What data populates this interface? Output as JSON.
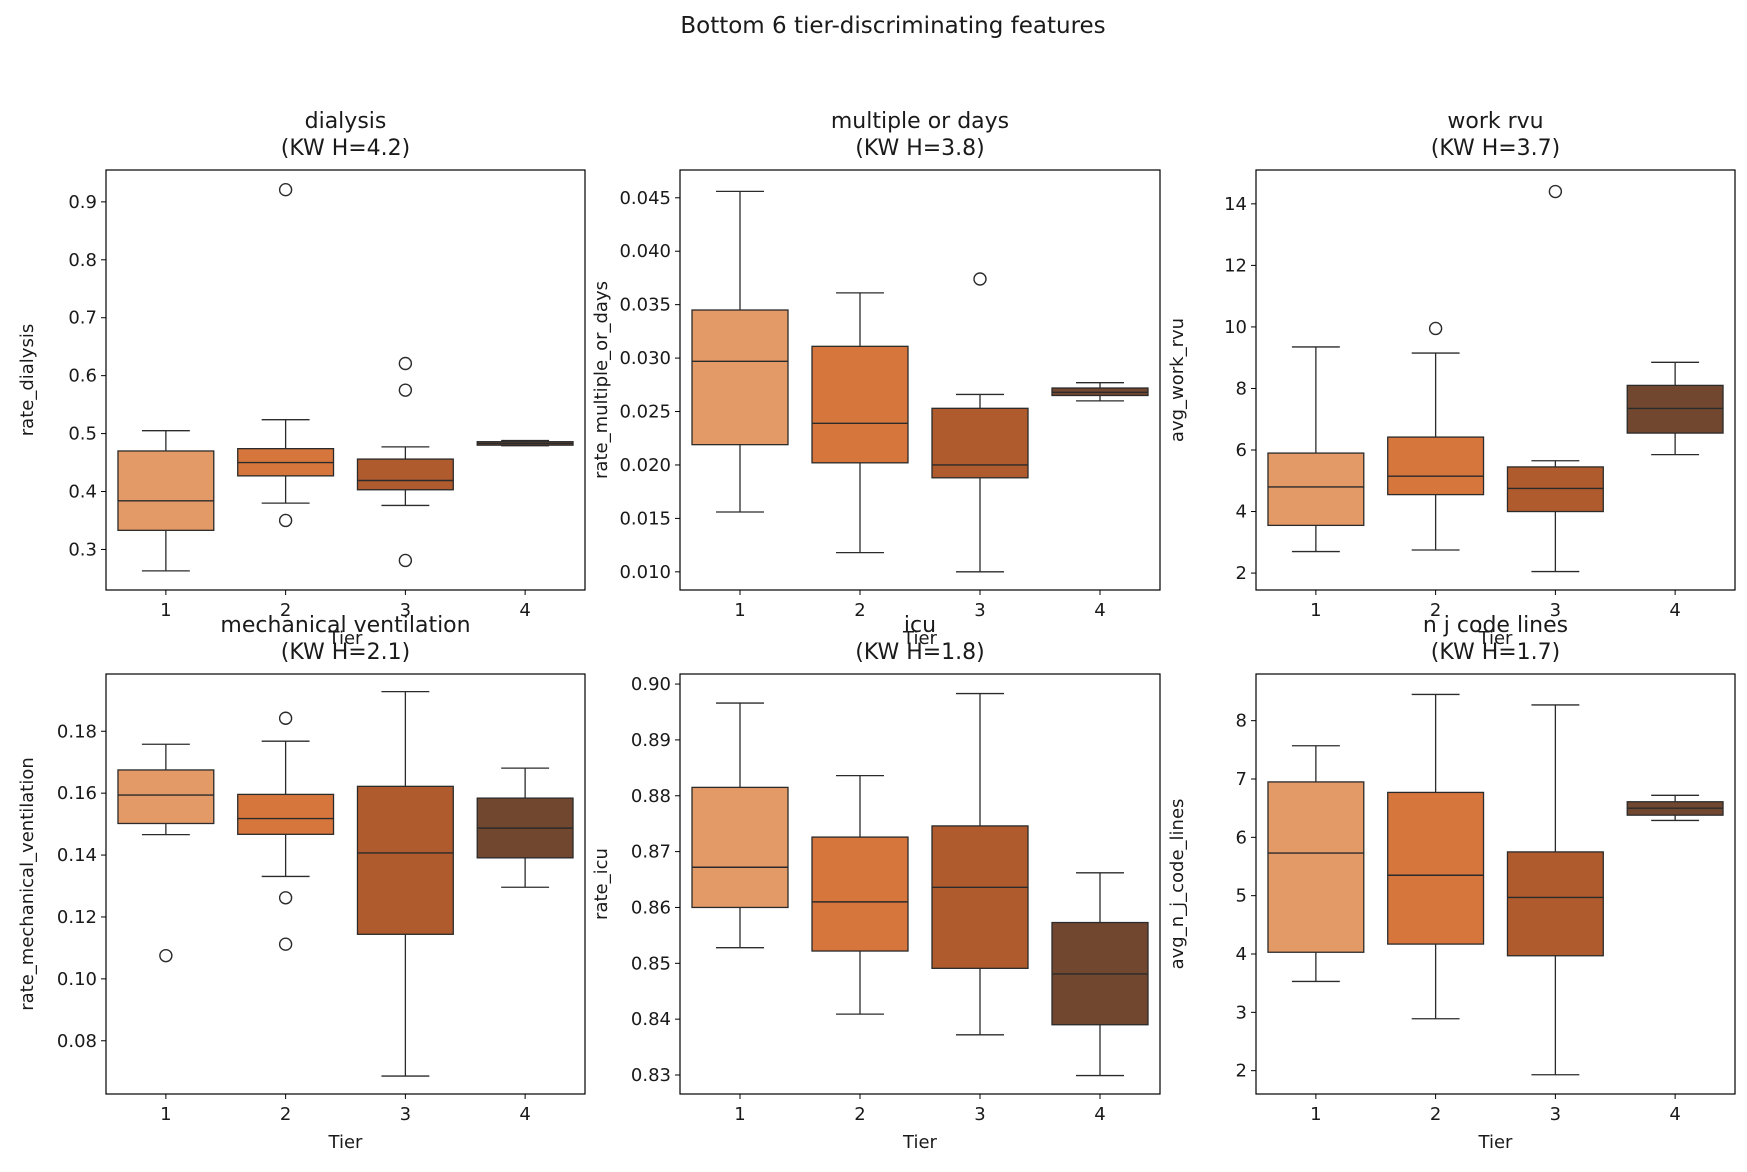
{
  "suptitle": "Bottom 6 tier-discriminating features",
  "colors": {
    "tiers": [
      "#e39a66",
      "#d7763c",
      "#af5b2d",
      "#724730"
    ],
    "line": "#2b2b2b"
  },
  "chart_data": [
    {
      "type": "box",
      "title_line1": "dialysis",
      "title_line2": "(KW H=4.2)",
      "xlabel": "Tier",
      "ylabel": "rate_dialysis",
      "categories": [
        "1",
        "2",
        "3",
        "4"
      ],
      "ylim": [
        0.23,
        0.955
      ],
      "yticks": [
        0.3,
        0.4,
        0.5,
        0.6,
        0.7,
        0.8,
        0.9
      ],
      "ytick_labels": [
        "0.3",
        "0.4",
        "0.5",
        "0.6",
        "0.7",
        "0.8",
        "0.9"
      ],
      "boxes": [
        {
          "tier": "1",
          "whislo": 0.263,
          "q1": 0.333,
          "med": 0.384,
          "q3": 0.47,
          "whishi": 0.505,
          "fliers": []
        },
        {
          "tier": "2",
          "whislo": 0.38,
          "q1": 0.427,
          "med": 0.45,
          "q3": 0.474,
          "whishi": 0.524,
          "fliers": [
            0.921,
            0.35
          ]
        },
        {
          "tier": "3",
          "whislo": 0.376,
          "q1": 0.403,
          "med": 0.419,
          "q3": 0.456,
          "whishi": 0.477,
          "fliers": [
            0.621,
            0.575,
            0.281
          ]
        },
        {
          "tier": "4",
          "whislo": 0.479,
          "q1": 0.48,
          "med": 0.483,
          "q3": 0.486,
          "whishi": 0.488,
          "fliers": []
        }
      ]
    },
    {
      "type": "box",
      "title_line1": "multiple or days",
      "title_line2": "(KW H=3.8)",
      "xlabel": "Tier",
      "ylabel": "rate_multiple_or_days",
      "categories": [
        "1",
        "2",
        "3",
        "4"
      ],
      "ylim": [
        0.0083,
        0.0476
      ],
      "yticks": [
        0.01,
        0.015,
        0.02,
        0.025,
        0.03,
        0.035,
        0.04,
        0.045
      ],
      "ytick_labels": [
        "0.010",
        "0.015",
        "0.020",
        "0.025",
        "0.030",
        "0.035",
        "0.040",
        "0.045"
      ],
      "boxes": [
        {
          "tier": "1",
          "whislo": 0.0156,
          "q1": 0.0219,
          "med": 0.0297,
          "q3": 0.0345,
          "whishi": 0.0456,
          "fliers": []
        },
        {
          "tier": "2",
          "whislo": 0.0118,
          "q1": 0.0202,
          "med": 0.0239,
          "q3": 0.0311,
          "whishi": 0.0361,
          "fliers": []
        },
        {
          "tier": "3",
          "whislo": 0.01,
          "q1": 0.0188,
          "med": 0.02,
          "q3": 0.0253,
          "whishi": 0.0266,
          "fliers": [
            0.0374
          ]
        },
        {
          "tier": "4",
          "whislo": 0.026,
          "q1": 0.0265,
          "med": 0.0268,
          "q3": 0.0272,
          "whishi": 0.0277,
          "fliers": []
        }
      ]
    },
    {
      "type": "box",
      "title_line1": "work rvu",
      "title_line2": "(KW H=3.7)",
      "xlabel": "Tier",
      "ylabel": "avg_work_rvu",
      "categories": [
        "1",
        "2",
        "3",
        "4"
      ],
      "ylim": [
        1.45,
        15.1
      ],
      "yticks": [
        2,
        4,
        6,
        8,
        10,
        12,
        14
      ],
      "ytick_labels": [
        "2",
        "4",
        "6",
        "8",
        "10",
        "12",
        "14"
      ],
      "boxes": [
        {
          "tier": "1",
          "whislo": 2.7,
          "q1": 3.55,
          "med": 4.8,
          "q3": 5.9,
          "whishi": 9.35,
          "fliers": []
        },
        {
          "tier": "2",
          "whislo": 2.75,
          "q1": 4.55,
          "med": 5.15,
          "q3": 6.42,
          "whishi": 9.15,
          "fliers": [
            9.95
          ]
        },
        {
          "tier": "3",
          "whislo": 2.05,
          "q1": 4.0,
          "med": 4.75,
          "q3": 5.45,
          "whishi": 5.65,
          "fliers": [
            14.4
          ]
        },
        {
          "tier": "4",
          "whislo": 5.85,
          "q1": 6.55,
          "med": 7.35,
          "q3": 8.1,
          "whishi": 8.85,
          "fliers": []
        }
      ]
    },
    {
      "type": "box",
      "title_line1": "mechanical ventilation",
      "title_line2": "(KW H=2.1)",
      "xlabel": "Tier",
      "ylabel": "rate_mechanical_ventilation",
      "categories": [
        "1",
        "2",
        "3",
        "4"
      ],
      "ylim": [
        0.0628,
        0.1985
      ],
      "yticks": [
        0.08,
        0.1,
        0.12,
        0.14,
        0.16,
        0.18
      ],
      "ytick_labels": [
        "0.08",
        "0.10",
        "0.12",
        "0.14",
        "0.16",
        "0.18"
      ],
      "boxes": [
        {
          "tier": "1",
          "whislo": 0.1466,
          "q1": 0.1502,
          "med": 0.1594,
          "q3": 0.1675,
          "whishi": 0.1758,
          "fliers": [
            0.1075
          ]
        },
        {
          "tier": "2",
          "whislo": 0.1331,
          "q1": 0.1467,
          "med": 0.1518,
          "q3": 0.1596,
          "whishi": 0.1768,
          "fliers": [
            0.1842,
            0.1262,
            0.1112
          ]
        },
        {
          "tier": "3",
          "whislo": 0.0686,
          "q1": 0.1144,
          "med": 0.1407,
          "q3": 0.1622,
          "whishi": 0.1928,
          "fliers": []
        },
        {
          "tier": "4",
          "whislo": 0.1296,
          "q1": 0.1391,
          "med": 0.1487,
          "q3": 0.1584,
          "whishi": 0.1681,
          "fliers": []
        }
      ]
    },
    {
      "type": "box",
      "title_line1": "icu",
      "title_line2": "(KW H=1.8)",
      "xlabel": "Tier",
      "ylabel": "rate_icu",
      "categories": [
        "1",
        "2",
        "3",
        "4"
      ],
      "ylim": [
        0.8266,
        0.9018
      ],
      "yticks": [
        0.83,
        0.84,
        0.85,
        0.86,
        0.87,
        0.88,
        0.89,
        0.9
      ],
      "ytick_labels": [
        "0.83",
        "0.84",
        "0.85",
        "0.86",
        "0.87",
        "0.88",
        "0.89",
        "0.90"
      ],
      "boxes": [
        {
          "tier": "1",
          "whislo": 0.8528,
          "q1": 0.86,
          "med": 0.8672,
          "q3": 0.8815,
          "whishi": 0.8966,
          "fliers": []
        },
        {
          "tier": "2",
          "whislo": 0.8409,
          "q1": 0.8522,
          "med": 0.861,
          "q3": 0.8726,
          "whishi": 0.8836,
          "fliers": []
        },
        {
          "tier": "3",
          "whislo": 0.8372,
          "q1": 0.8491,
          "med": 0.8636,
          "q3": 0.8746,
          "whishi": 0.8983,
          "fliers": []
        },
        {
          "tier": "4",
          "whislo": 0.8299,
          "q1": 0.839,
          "med": 0.8481,
          "q3": 0.8573,
          "whishi": 0.8662,
          "fliers": []
        }
      ]
    },
    {
      "type": "box",
      "title_line1": "n j code lines",
      "title_line2": "(KW H=1.7)",
      "xlabel": "Tier",
      "ylabel": "avg_n_j_code_lines",
      "categories": [
        "1",
        "2",
        "3",
        "4"
      ],
      "ylim": [
        1.6,
        8.8
      ],
      "yticks": [
        2,
        3,
        4,
        5,
        6,
        7,
        8
      ],
      "ytick_labels": [
        "2",
        "3",
        "4",
        "5",
        "6",
        "7",
        "8"
      ],
      "boxes": [
        {
          "tier": "1",
          "whislo": 3.53,
          "q1": 4.03,
          "med": 5.73,
          "q3": 6.95,
          "whishi": 7.57,
          "fliers": []
        },
        {
          "tier": "2",
          "whislo": 2.89,
          "q1": 4.17,
          "med": 5.35,
          "q3": 6.77,
          "whishi": 8.45,
          "fliers": []
        },
        {
          "tier": "3",
          "whislo": 1.93,
          "q1": 3.97,
          "med": 4.97,
          "q3": 5.75,
          "whishi": 8.27,
          "fliers": []
        },
        {
          "tier": "4",
          "whislo": 6.29,
          "q1": 6.38,
          "med": 6.5,
          "q3": 6.61,
          "whishi": 6.72,
          "fliers": []
        }
      ]
    }
  ]
}
